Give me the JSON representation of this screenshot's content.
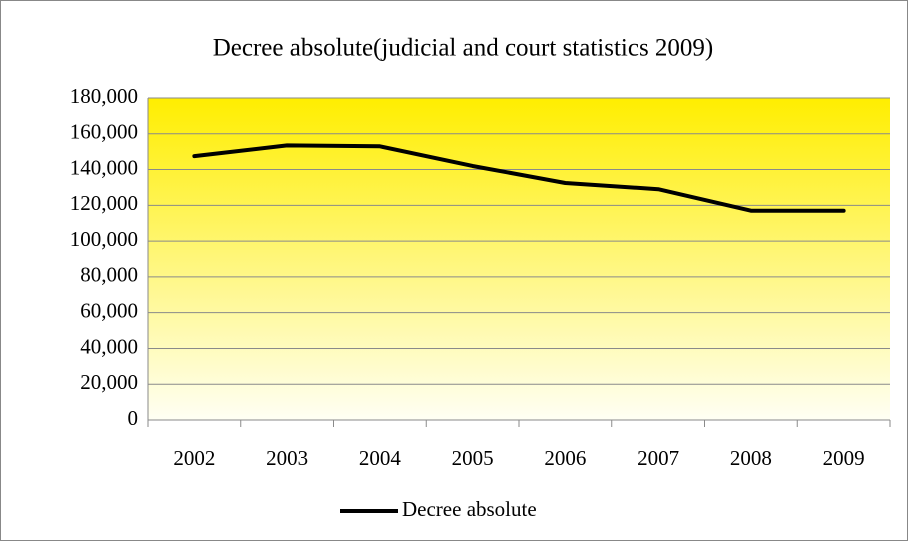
{
  "chart_data": {
    "type": "line",
    "title": "Decree absolute(judicial and court statistics 2009)",
    "categories": [
      "2002",
      "2003",
      "2004",
      "2005",
      "2006",
      "2007",
      "2008",
      "2009"
    ],
    "series": [
      {
        "name": "Decree absolute",
        "color": "#000000",
        "values": [
          147500,
          153500,
          153000,
          142000,
          132500,
          129000,
          117000,
          117000
        ]
      }
    ],
    "ylim": [
      0,
      180000
    ],
    "yticks": [
      0,
      {
        "value": 20000,
        "label": "20,000"
      },
      {
        "value": 40000,
        "label": "40,000"
      },
      {
        "value": 60000,
        "label": "60,000"
      },
      {
        "value": 80000,
        "label": "80,000"
      },
      {
        "value": 100000,
        "label": "100,000"
      },
      {
        "value": 120000,
        "label": "120,000"
      },
      {
        "value": 140000,
        "label": "140,000"
      },
      {
        "value": 160000,
        "label": "160,000"
      },
      {
        "value": 180000,
        "label": "180,000"
      }
    ],
    "grid": true,
    "legend": "bottom"
  }
}
